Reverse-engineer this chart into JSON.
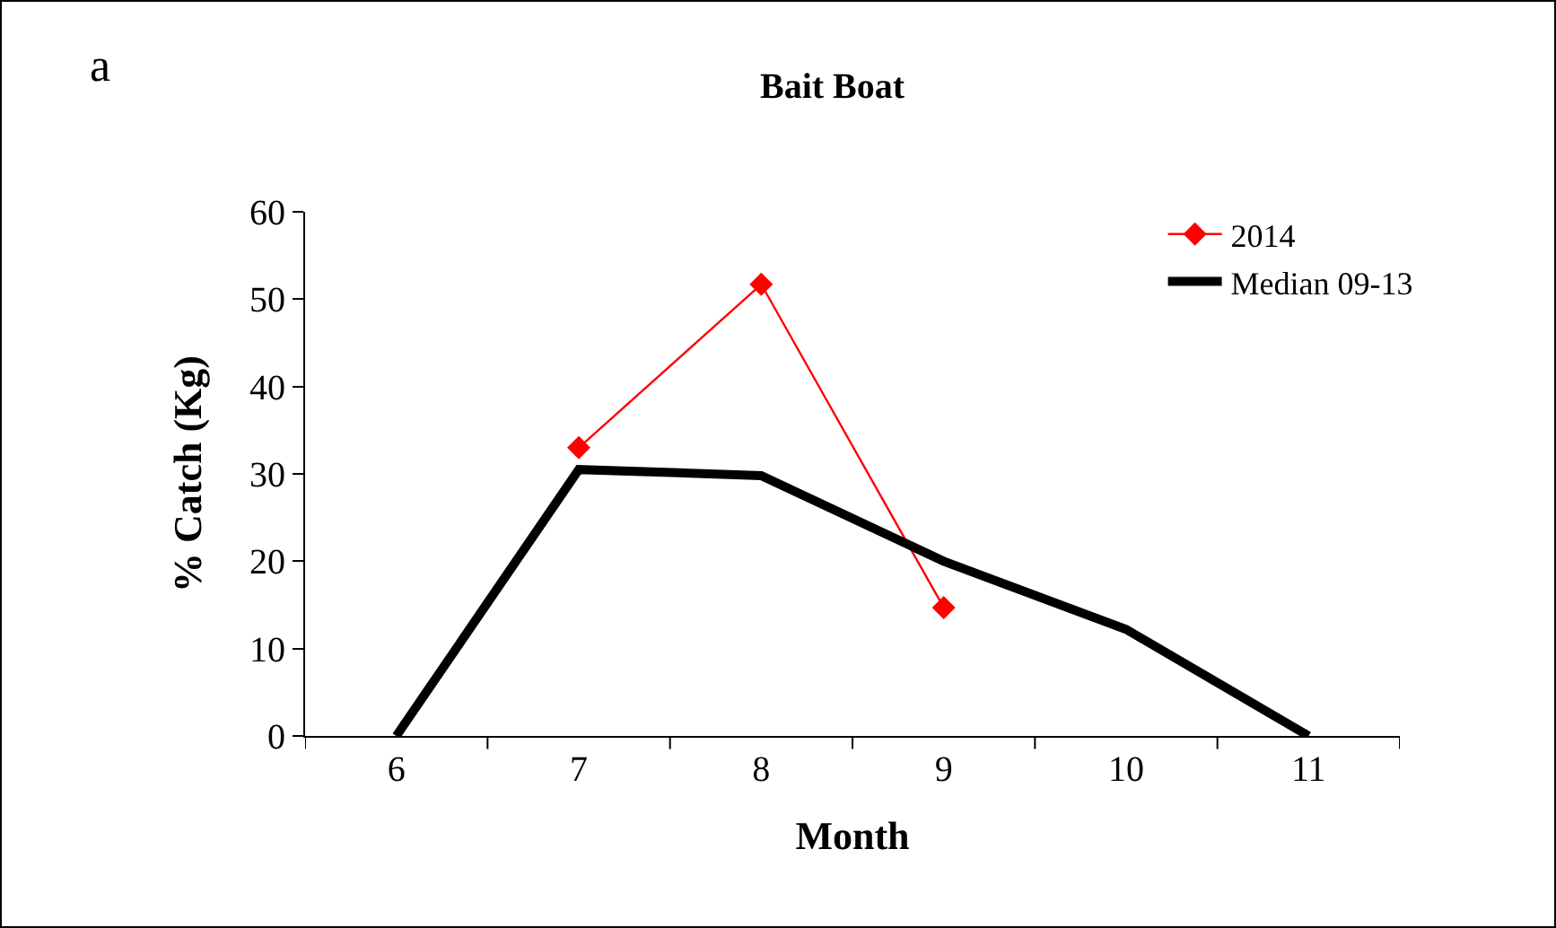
{
  "chart_data": {
    "type": "line",
    "title": "Bait Boat",
    "xlabel": "Month",
    "ylabel": "% Catch (Kg)",
    "annotations": [
      "a"
    ],
    "categories": [
      "6",
      "7",
      "8",
      "9",
      "10",
      "11"
    ],
    "series": [
      {
        "name": "2014",
        "color": "#ff0000",
        "marker": "diamond",
        "line_style": "solid",
        "values": [
          null,
          33,
          51.7,
          14.7,
          null,
          null
        ]
      },
      {
        "name": "Median 09-13",
        "color": "#000000",
        "marker": "none",
        "line_style": "solid",
        "values": [
          0,
          30.5,
          29.8,
          20,
          12.2,
          0
        ]
      }
    ],
    "ylim": [
      0,
      60
    ],
    "yticks": [
      0,
      10,
      20,
      30,
      40,
      50,
      60
    ],
    "grid": false,
    "legend": "top right"
  }
}
